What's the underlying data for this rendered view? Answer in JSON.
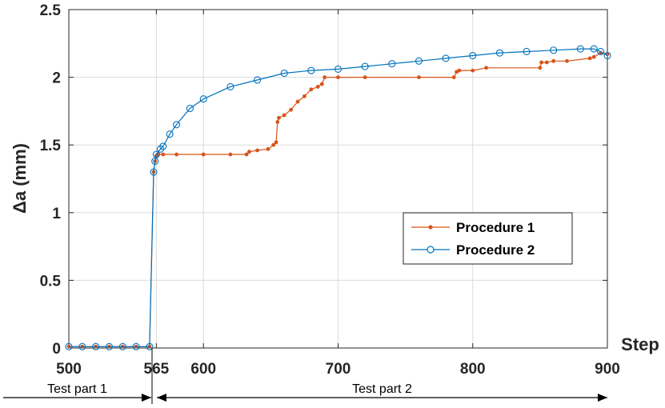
{
  "chart_data": {
    "type": "line",
    "title": "",
    "xlabel": "Step",
    "ylabel": "Δa (mm)",
    "xlim": [
      500,
      900
    ],
    "ylim": [
      0,
      2.5
    ],
    "xticks": [
      500,
      565,
      600,
      700,
      800,
      900
    ],
    "xtick_labels": [
      "500",
      "565",
      "600",
      "700",
      "800",
      "900"
    ],
    "yticks": [
      0,
      0.5,
      1,
      1.5,
      2,
      2.5
    ],
    "ytick_labels": [
      "0",
      "0.5",
      "1",
      "1.5",
      "2",
      "2.5"
    ],
    "grid": true,
    "legend_position": "center-right",
    "annotations": [
      {
        "text": "Test part 1",
        "range": [
          500,
          563
        ]
      },
      {
        "text": "Test part 2",
        "range": [
          563,
          900
        ]
      }
    ],
    "series": [
      {
        "name": "Procedure 1",
        "color": "#D95319",
        "marker": "dot",
        "x": [
          500,
          510,
          520,
          530,
          540,
          550,
          560,
          563,
          564,
          565,
          566,
          570,
          580,
          600,
          620,
          632,
          634,
          640,
          648,
          652,
          654,
          655,
          656,
          660,
          665,
          670,
          675,
          680,
          685,
          688,
          690,
          700,
          720,
          760,
          786,
          788,
          790,
          800,
          810,
          850,
          851,
          855,
          860,
          870,
          887,
          890,
          895,
          900
        ],
        "y": [
          0.01,
          0.01,
          0.01,
          0.01,
          0.01,
          0.01,
          0.01,
          1.3,
          1.38,
          1.42,
          1.43,
          1.43,
          1.43,
          1.43,
          1.43,
          1.43,
          1.45,
          1.46,
          1.47,
          1.5,
          1.52,
          1.67,
          1.7,
          1.72,
          1.76,
          1.82,
          1.86,
          1.91,
          1.93,
          1.95,
          2.0,
          2.0,
          2.0,
          2.0,
          2.0,
          2.04,
          2.05,
          2.05,
          2.07,
          2.07,
          2.11,
          2.11,
          2.12,
          2.12,
          2.14,
          2.15,
          2.18,
          2.17
        ]
      },
      {
        "name": "Procedure 2",
        "color": "#0072BD",
        "marker": "circle",
        "x": [
          500,
          510,
          520,
          530,
          540,
          550,
          560,
          563,
          564,
          565,
          568,
          570,
          575,
          580,
          590,
          600,
          620,
          640,
          660,
          680,
          700,
          720,
          740,
          760,
          780,
          800,
          820,
          840,
          860,
          880,
          890,
          895,
          900
        ],
        "y": [
          0.01,
          0.01,
          0.01,
          0.01,
          0.01,
          0.01,
          0.01,
          1.3,
          1.38,
          1.43,
          1.47,
          1.49,
          1.58,
          1.65,
          1.77,
          1.84,
          1.93,
          1.98,
          2.03,
          2.05,
          2.06,
          2.08,
          2.1,
          2.12,
          2.14,
          2.16,
          2.18,
          2.19,
          2.2,
          2.21,
          2.21,
          2.19,
          2.16
        ]
      }
    ]
  }
}
